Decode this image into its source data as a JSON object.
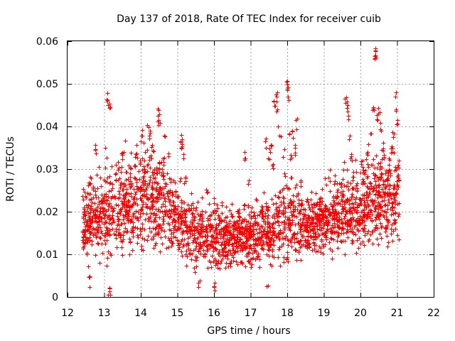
{
  "chart_data": {
    "type": "scatter",
    "title": "Day 137 of 2018, Rate Of TEC Index for receiver cuib",
    "xlabel": "GPS time / hours",
    "ylabel": "ROTI / TECUs",
    "xlim": [
      12,
      22
    ],
    "ylim": [
      0,
      0.06
    ],
    "grid": true,
    "x_ticks": [
      12,
      13,
      14,
      15,
      16,
      17,
      18,
      19,
      20,
      21,
      22
    ],
    "y_ticks": [
      0,
      0.01,
      0.02,
      0.03,
      0.04,
      0.05,
      0.06
    ],
    "x_tick_labels": [
      "12",
      "13",
      "14",
      "15",
      "16",
      "17",
      "18",
      "19",
      "20",
      "21",
      "22"
    ],
    "y_tick_labels": [
      "0",
      "0.01",
      "0.02",
      "0.03",
      "0.04",
      "0.05",
      "0.06"
    ],
    "marker": "+",
    "color": "#ff0000",
    "density_profile": {
      "x_start": 12.4,
      "x_end": 21.05,
      "points_per_hour": 300,
      "envelope": [
        {
          "x": 12.4,
          "low": 0.005,
          "high": 0.026
        },
        {
          "x": 12.8,
          "low": 0.006,
          "high": 0.03
        },
        {
          "x": 13.2,
          "low": 0.003,
          "high": 0.035
        },
        {
          "x": 13.6,
          "low": 0.008,
          "high": 0.033
        },
        {
          "x": 14.0,
          "low": 0.007,
          "high": 0.038
        },
        {
          "x": 14.5,
          "low": 0.007,
          "high": 0.036
        },
        {
          "x": 15.0,
          "low": 0.006,
          "high": 0.028
        },
        {
          "x": 15.5,
          "low": 0.005,
          "high": 0.024
        },
        {
          "x": 16.0,
          "low": 0.004,
          "high": 0.023
        },
        {
          "x": 16.5,
          "low": 0.005,
          "high": 0.022
        },
        {
          "x": 17.0,
          "low": 0.005,
          "high": 0.023
        },
        {
          "x": 17.5,
          "low": 0.004,
          "high": 0.026
        },
        {
          "x": 18.0,
          "low": 0.005,
          "high": 0.03
        },
        {
          "x": 18.5,
          "low": 0.006,
          "high": 0.026
        },
        {
          "x": 19.0,
          "low": 0.007,
          "high": 0.027
        },
        {
          "x": 19.5,
          "low": 0.007,
          "high": 0.03
        },
        {
          "x": 20.0,
          "low": 0.008,
          "high": 0.032
        },
        {
          "x": 20.5,
          "low": 0.008,
          "high": 0.036
        },
        {
          "x": 21.05,
          "low": 0.01,
          "high": 0.034
        }
      ],
      "peaks": [
        [
          12.6,
          0.029
        ],
        [
          12.75,
          0.036
        ],
        [
          13.05,
          0.035
        ],
        [
          13.1,
          0.047
        ],
        [
          13.12,
          0.048
        ],
        [
          13.14,
          0.046
        ],
        [
          13.2,
          0.026
        ],
        [
          13.3,
          0.03
        ],
        [
          13.35,
          0.032
        ],
        [
          13.5,
          0.035
        ],
        [
          13.55,
          0.037
        ],
        [
          13.85,
          0.033
        ],
        [
          14.0,
          0.039
        ],
        [
          14.05,
          0.04
        ],
        [
          14.1,
          0.032
        ],
        [
          14.2,
          0.041
        ],
        [
          14.25,
          0.039
        ],
        [
          14.3,
          0.036
        ],
        [
          14.45,
          0.044
        ],
        [
          14.48,
          0.045
        ],
        [
          14.5,
          0.043
        ],
        [
          14.6,
          0.031
        ],
        [
          14.65,
          0.038
        ],
        [
          14.75,
          0.034
        ],
        [
          14.8,
          0.029
        ],
        [
          15.1,
          0.037
        ],
        [
          15.12,
          0.038
        ],
        [
          15.15,
          0.034
        ],
        [
          15.2,
          0.029
        ],
        [
          15.8,
          0.026
        ],
        [
          16.0,
          0.024
        ],
        [
          16.85,
          0.034
        ],
        [
          16.95,
          0.029
        ],
        [
          17.4,
          0.038
        ],
        [
          17.5,
          0.035
        ],
        [
          17.55,
          0.036
        ],
        [
          17.6,
          0.032
        ],
        [
          17.65,
          0.047
        ],
        [
          17.7,
          0.046
        ],
        [
          17.72,
          0.048
        ],
        [
          17.75,
          0.042
        ],
        [
          17.8,
          0.039
        ],
        [
          17.9,
          0.035
        ],
        [
          17.98,
          0.05
        ],
        [
          18.0,
          0.051
        ],
        [
          18.02,
          0.048
        ],
        [
          18.05,
          0.041
        ],
        [
          18.1,
          0.035
        ],
        [
          18.15,
          0.039
        ],
        [
          18.2,
          0.036
        ],
        [
          18.25,
          0.042
        ],
        [
          18.35,
          0.029
        ],
        [
          19.05,
          0.029
        ],
        [
          19.15,
          0.03
        ],
        [
          19.3,
          0.029
        ],
        [
          19.35,
          0.027
        ],
        [
          19.55,
          0.032
        ],
        [
          19.6,
          0.048
        ],
        [
          19.62,
          0.046
        ],
        [
          19.65,
          0.044
        ],
        [
          19.7,
          0.038
        ],
        [
          19.75,
          0.034
        ],
        [
          19.8,
          0.03
        ],
        [
          20.05,
          0.033
        ],
        [
          20.1,
          0.03
        ],
        [
          20.2,
          0.036
        ],
        [
          20.3,
          0.039
        ],
        [
          20.35,
          0.046
        ],
        [
          20.4,
          0.058
        ],
        [
          20.42,
          0.0585
        ],
        [
          20.45,
          0.044
        ],
        [
          20.5,
          0.045
        ],
        [
          20.55,
          0.042
        ],
        [
          20.6,
          0.037
        ],
        [
          20.65,
          0.035
        ],
        [
          20.75,
          0.03
        ],
        [
          20.85,
          0.037
        ],
        [
          20.9,
          0.039
        ],
        [
          20.95,
          0.045
        ],
        [
          20.97,
          0.049
        ],
        [
          21.0,
          0.042
        ],
        [
          21.02,
          0.033
        ],
        [
          13.1,
          0.002
        ],
        [
          13.15,
          0.003
        ],
        [
          12.6,
          0.005
        ],
        [
          17.45,
          0.004
        ],
        [
          16.0,
          0.004
        ],
        [
          15.6,
          0.005
        ]
      ]
    }
  }
}
